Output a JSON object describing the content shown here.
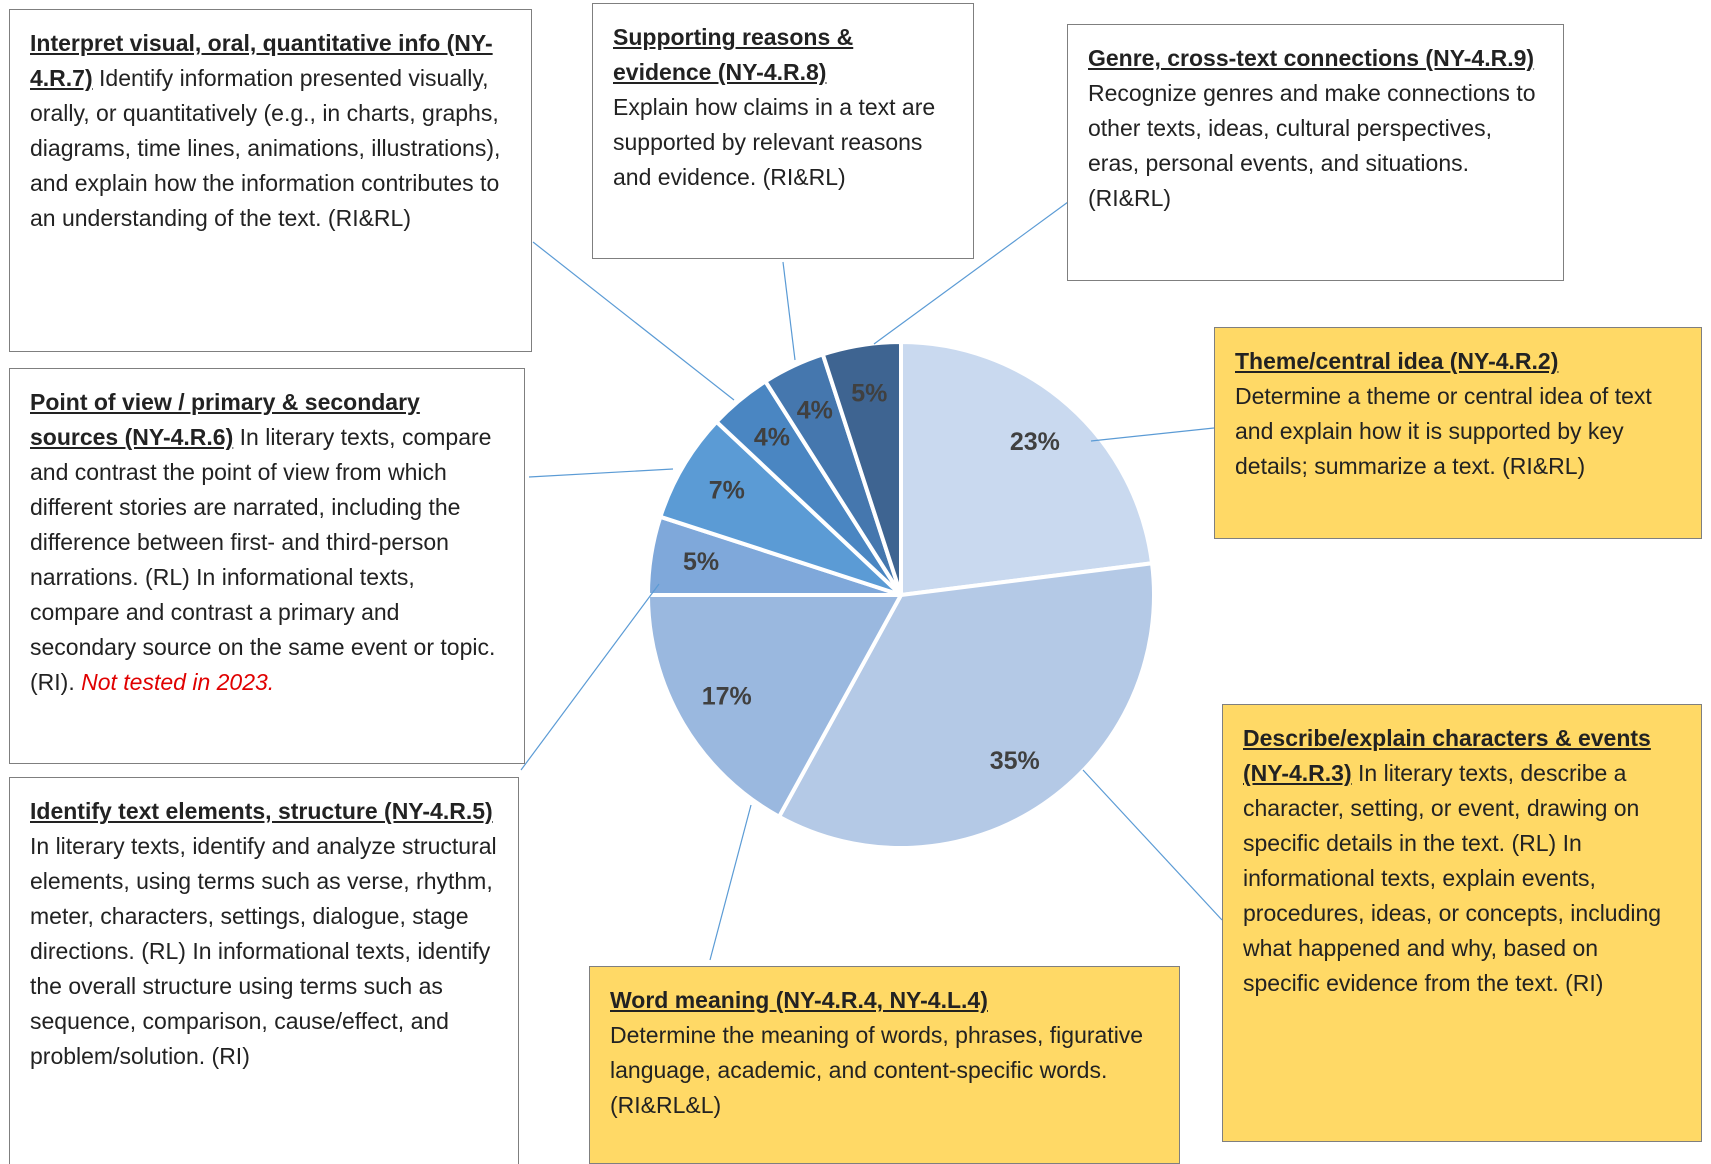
{
  "chart_data": {
    "type": "pie",
    "categories": [
      "Theme/central idea (NY-4.R.2)",
      "Describe/explain characters & events (NY-4.R.3)",
      "Word meaning (NY-4.R.4, NY-4.L.4)",
      "Identify text elements, structure (NY-4.R.5)",
      "Point of view / primary & secondary sources (NY-4.R.6)",
      "Interpret visual, oral, quantitative info (NY-4.R.7)",
      "Supporting reasons & evidence (NY-4.R.8)",
      "Genre, cross-text connections (NY-4.R.9)"
    ],
    "descriptions": [
      "Determine a theme or central idea of text and explain how it is supported by key details; summarize a text. (RI&RL)",
      "In literary texts, describe a character, setting, or event, drawing on specific details in the text. (RL) In informational texts, explain events, procedures, ideas, or concepts, including what happened and why, based on specific evidence from the text. (RI)",
      "Determine the meaning of words, phrases, figurative language, academic, and content-specific words. (RI&RL&L)",
      "In literary texts, identify and analyze structural elements, using terms such as verse, rhythm, meter, characters, settings, dialogue, stage directions. (RL) In informational texts, identify the overall structure using terms such as sequence, comparison, cause/effect, and problem/solution. (RI)",
      "In literary texts, compare and contrast the point of view from which different stories are narrated, including the difference between first- and third-person narrations. (RL) In informational texts, compare and contrast a primary and secondary source on the same event or topic. (RI).",
      "Identify information presented visually, orally, or quantitatively (e.g., in charts, graphs, diagrams, time lines, animations, illustrations), and explain how the information contributes to an understanding of the text. (RI&RL)",
      "Explain how claims in a text are supported by relevant reasons and evidence. (RI&RL)",
      "Recognize genres and make connections to other texts, ideas, cultural perspectives, eras, personal events, and situations. (RI&RL)"
    ],
    "note": "Not tested in 2023.",
    "values": [
      23,
      35,
      17,
      5,
      7,
      4,
      4,
      5
    ],
    "value_labels": [
      "23%",
      "35%",
      "17%",
      "5%",
      "7%",
      "4%",
      "4%",
      "5%"
    ],
    "colors": [
      "#c9d9ef",
      "#b4c9e6",
      "#9ab8df",
      "#7fa8da",
      "#5b9bd5",
      "#4a86c2",
      "#4577ae",
      "#3e6491"
    ]
  }
}
